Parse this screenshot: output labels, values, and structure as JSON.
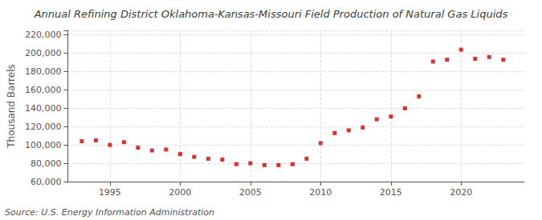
{
  "chart_data": {
    "type": "scatter",
    "title": "Annual Refining District Oklahoma-Kansas-Missouri Field Production of Natural Gas Liquids",
    "ylabel": "Thousand Barrels",
    "annotations": [
      "Source: U.S. Energy Information Administration"
    ],
    "x": [
      1993,
      1994,
      1995,
      1996,
      1997,
      1998,
      1999,
      2000,
      2001,
      2002,
      2003,
      2004,
      2005,
      2006,
      2007,
      2008,
      2009,
      2010,
      2011,
      2012,
      2013,
      2014,
      2015,
      2016,
      2017,
      2018,
      2019,
      2020,
      2021,
      2022,
      2023
    ],
    "values": [
      104000,
      105000,
      100000,
      103000,
      97000,
      94000,
      95000,
      90000,
      87000,
      85000,
      84000,
      79000,
      80000,
      78000,
      78000,
      79000,
      85000,
      102000,
      113000,
      116000,
      119000,
      128000,
      131000,
      140000,
      153000,
      191000,
      193000,
      204000,
      194000,
      196000,
      193000
    ],
    "color": "#cc0000",
    "marker": "square",
    "xlim": [
      1992,
      2024.5
    ],
    "xticks": [
      1995,
      2000,
      2005,
      2010,
      2015,
      2020
    ],
    "ylim": [
      60000,
      225000
    ],
    "yticks": [
      {
        "value": 60000,
        "label": "60,000"
      },
      {
        "value": 80000,
        "label": "80,000"
      },
      {
        "value": 100000,
        "label": "100,000"
      },
      {
        "value": 120000,
        "label": "120,000"
      },
      {
        "value": 140000,
        "label": "140,000"
      },
      {
        "value": 160000,
        "label": "160,000"
      },
      {
        "value": 180000,
        "label": "180,000"
      },
      {
        "value": 200000,
        "label": "200,000"
      },
      {
        "value": 220000,
        "label": "220,000"
      }
    ],
    "grid": true
  }
}
